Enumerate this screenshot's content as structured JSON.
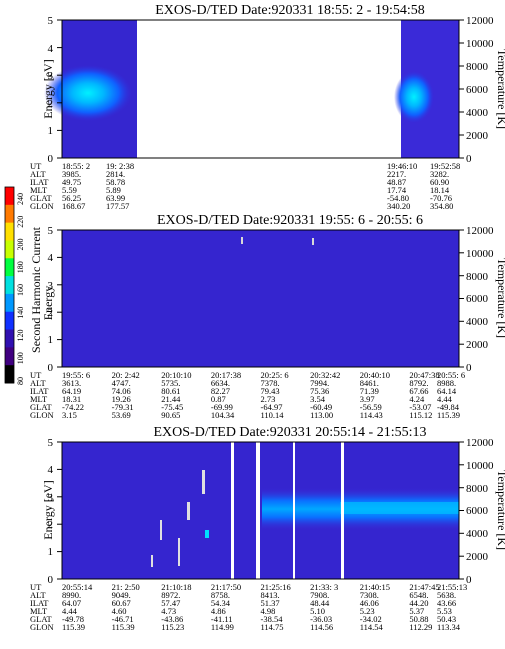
{
  "colorbar": {
    "label": "Second Harmonic Current",
    "ticks": [
      "240",
      "220",
      "200",
      "180",
      "160",
      "140",
      "120",
      "100",
      "80"
    ],
    "colors": [
      "#ff0000",
      "#ff7a00",
      "#ffe000",
      "#c8ff00",
      "#00ff40",
      "#00e0e0",
      "#0098ff",
      "#1030ff",
      "#3010b0",
      "#400080",
      "#000000"
    ]
  },
  "chart_data": [
    {
      "type": "heatmap",
      "title": "EXOS-D/TED   Date:920331  18:55: 2 - 19:54:58",
      "ylabel": "Energy [eV]",
      "y2label": "Temperature [K]",
      "yticks": [
        "0",
        "1",
        "2",
        "3",
        "4",
        "5"
      ],
      "y2ticks": [
        "0",
        "2000",
        "4000",
        "6000",
        "8000",
        "10000",
        "12000"
      ],
      "ylim": [
        0,
        5
      ],
      "y2lim": [
        0,
        12000
      ],
      "row_labels": [
        "UT",
        "ALT",
        "ILAT",
        "MLT",
        "GLAT",
        "GLON"
      ],
      "columns": [
        {
          "UT": "18:55: 2",
          "ALT": "3985.",
          "ILAT": "49.75",
          "MLT": "5.59",
          "GLAT": "56.25",
          "GLON": "168.67"
        },
        {
          "UT": "19: 2:38",
          "ALT": "2814.",
          "ILAT": "58.78",
          "MLT": "5.89",
          "GLAT": "63.99",
          "GLON": "177.57"
        },
        {
          "UT": "19:46:10",
          "ALT": "2217.",
          "ILAT": "48.87",
          "MLT": "17.74",
          "GLAT": "-54.80",
          "GLON": "340.20"
        },
        {
          "UT": "19:52:58",
          "ALT": "3282.",
          "ILAT": "60.90",
          "MLT": "18.14",
          "GLAT": "-70.76",
          "GLON": "354.80"
        }
      ]
    },
    {
      "type": "heatmap",
      "title": "EXOS-D/TED   Date:920331  19:55: 6 - 20:55: 6",
      "ylabel": "Energy",
      "y2label": "Temperature [K]",
      "yticks": [
        "0",
        "1",
        "2",
        "3",
        "4",
        "5"
      ],
      "y2ticks": [
        "0",
        "2000",
        "4000",
        "6000",
        "8000",
        "10000",
        "12000"
      ],
      "ylim": [
        0,
        5
      ],
      "y2lim": [
        0,
        12000
      ],
      "row_labels": [
        "UT",
        "ALT",
        "ILAT",
        "MLT",
        "GLAT",
        "GLON"
      ],
      "columns": [
        {
          "UT": "19:55: 6",
          "ALT": "3613.",
          "ILAT": "64.19",
          "MLT": "18.31",
          "GLAT": "-74.22",
          "GLON": "3.15"
        },
        {
          "UT": "20: 2:42",
          "ALT": "4747.",
          "ILAT": "74.06",
          "MLT": "19.26",
          "GLAT": "-79.31",
          "GLON": "53.69"
        },
        {
          "UT": "20:10:10",
          "ALT": "5735.",
          "ILAT": "80.61",
          "MLT": "21.44",
          "GLAT": "-75.45",
          "GLON": "90.65"
        },
        {
          "UT": "20:17:38",
          "ALT": "6634.",
          "ILAT": "82.27",
          "MLT": "0.87",
          "GLAT": "-69.99",
          "GLON": "104.34"
        },
        {
          "UT": "20:25: 6",
          "ALT": "7378.",
          "ILAT": "79.43",
          "MLT": "2.73",
          "GLAT": "-64.97",
          "GLON": "110.14"
        },
        {
          "UT": "20:32:42",
          "ALT": "7994.",
          "ILAT": "75.36",
          "MLT": "3.54",
          "GLAT": "-60.49",
          "GLON": "113.00"
        },
        {
          "UT": "20:40:10",
          "ALT": "8461.",
          "ILAT": "71.39",
          "MLT": "3.97",
          "GLAT": "-56.59",
          "GLON": "114.43"
        },
        {
          "UT": "20:47:38",
          "ALT": "8792.",
          "ILAT": "67.66",
          "MLT": "4.24",
          "GLAT": "-53.07",
          "GLON": "115.12"
        },
        {
          "UT": "20:55: 6",
          "ALT": "8988.",
          "ILAT": "64.14",
          "MLT": "4.44",
          "GLAT": "-49.84",
          "GLON": "115.39"
        }
      ]
    },
    {
      "type": "heatmap",
      "title": "EXOS-D/TED   Date:920331  20:55:14 - 21:55:13",
      "ylabel": "Energy [eV]",
      "y2label": "Temperature [K]",
      "yticks": [
        "0",
        "1",
        "2",
        "3",
        "4",
        "5"
      ],
      "y2ticks": [
        "0",
        "2000",
        "4000",
        "6000",
        "8000",
        "10000",
        "12000"
      ],
      "ylim": [
        0,
        5
      ],
      "y2lim": [
        0,
        12000
      ],
      "row_labels": [
        "UT",
        "ALT",
        "ILAT",
        "MLT",
        "GLAT",
        "GLON"
      ],
      "columns": [
        {
          "UT": "20:55:14",
          "ALT": "8990.",
          "ILAT": "64.07",
          "MLT": "4.44",
          "GLAT": "-49.78",
          "GLON": "115.39"
        },
        {
          "UT": "21: 2:50",
          "ALT": "9049.",
          "ILAT": "60.67",
          "MLT": "4.60",
          "GLAT": "-46.71",
          "GLON": "115.39"
        },
        {
          "UT": "21:10:18",
          "ALT": "8972.",
          "ILAT": "57.47",
          "MLT": "4.73",
          "GLAT": "-43.86",
          "GLON": "115.23"
        },
        {
          "UT": "21:17:50",
          "ALT": "8758.",
          "ILAT": "54.34",
          "MLT": "4.86",
          "GLAT": "-41.11",
          "GLON": "114.99"
        },
        {
          "UT": "21:25:16",
          "ALT": "8413.",
          "ILAT": "51.37",
          "MLT": "4.98",
          "GLAT": "-38.54",
          "GLON": "114.75"
        },
        {
          "UT": "21:33: 3",
          "ALT": "7908.",
          "ILAT": "48.44",
          "MLT": "5.10",
          "GLAT": "-36.03",
          "GLON": "114.56"
        },
        {
          "UT": "21:40:15",
          "ALT": "7308.",
          "ILAT": "46.06",
          "MLT": "5.23",
          "GLAT": "-34.02",
          "GLON": "114.54"
        },
        {
          "UT": "21:47:45",
          "ALT": "6548.",
          "ILAT": "44.20",
          "MLT": "5.37",
          "GLAT": "50.88",
          "GLON": "112.29"
        },
        {
          "UT": "21:55:13",
          "ALT": "5638.",
          "ILAT": "43.66",
          "MLT": "5.53",
          "GLAT": "50.43",
          "GLON": "113.34"
        }
      ]
    }
  ]
}
